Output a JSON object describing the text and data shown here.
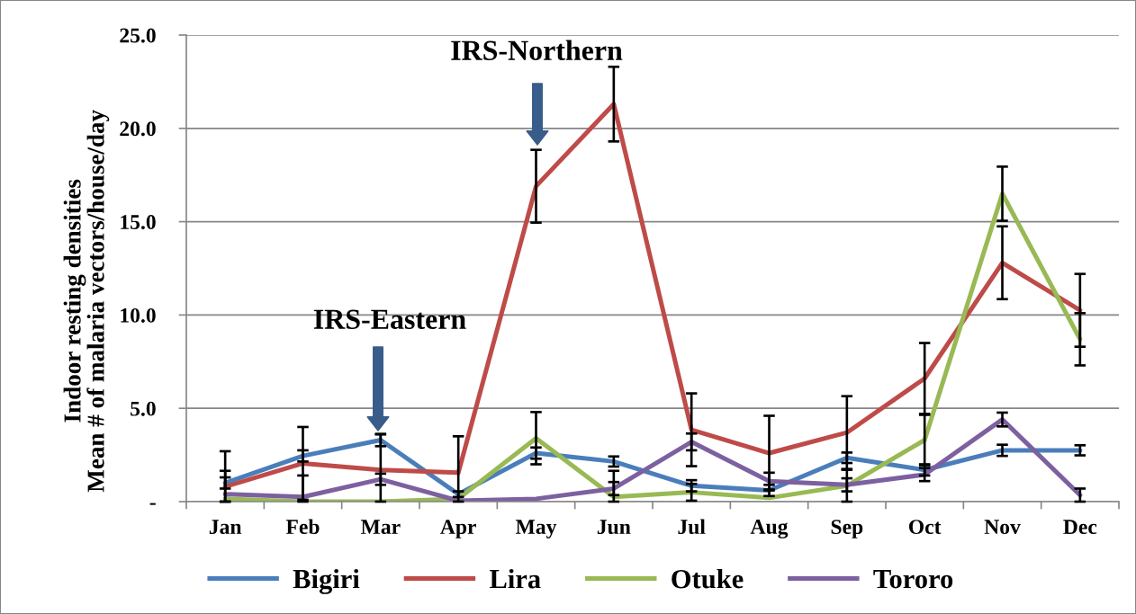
{
  "chart_data": {
    "type": "line",
    "ylabel": "Indoor resting densities\nMean # of malaria vectors/house/day",
    "categories": [
      "Jan",
      "Feb",
      "Mar",
      "Apr",
      "May",
      "Jun",
      "Jul",
      "Aug",
      "Sep",
      "Oct",
      "Nov",
      "Dec"
    ],
    "series": [
      {
        "name": "Bigiri",
        "color": "#4a7ebb",
        "values": [
          1.0,
          2.45,
          3.3,
          0.4,
          2.6,
          2.15,
          0.85,
          0.6,
          2.35,
          1.7,
          2.75,
          2.75
        ],
        "errors": [
          0.3,
          0.3,
          0.33,
          0.15,
          0.3,
          0.27,
          0.3,
          0.3,
          0.28,
          0.3,
          0.3,
          0.27
        ]
      },
      {
        "name": "Lira",
        "color": "#be4b48",
        "values": [
          0.8,
          2.05,
          1.7,
          1.55,
          16.9,
          21.3,
          3.85,
          2.6,
          3.7,
          6.6,
          12.8,
          10.25
        ],
        "errors": [
          [
            0,
            2.7
          ],
          1.95,
          [
            0,
            3.6
          ],
          [
            0,
            3.5
          ],
          1.95,
          2.0,
          1.95,
          2.0,
          1.95,
          1.9,
          1.95,
          1.95
        ]
      },
      {
        "name": "Otuke",
        "color": "#98b954",
        "values": [
          0.15,
          0,
          0,
          0.15,
          3.4,
          0.25,
          0.5,
          0.2,
          0.85,
          3.3,
          16.5,
          8.7
        ],
        "errors": [
          null,
          null,
          null,
          null,
          1.4,
          [
            0,
            1.65
          ],
          0.45,
          null,
          0.85,
          1.35,
          1.45,
          1.4
        ]
      },
      {
        "name": "Tororo",
        "color": "#7d60a0",
        "values": [
          0.4,
          0.25,
          1.2,
          0.05,
          0.15,
          0.7,
          3.2,
          1.1,
          0.9,
          1.45,
          4.4,
          0.35
        ],
        "errors": [
          [
            0,
            1.65
          ],
          [
            0,
            1.4
          ],
          0.3,
          null,
          null,
          0.35,
          0.45,
          0.45,
          0.35,
          0.35,
          0.37,
          0.35
        ]
      }
    ],
    "ylim": [
      0,
      25
    ],
    "yticks": [
      {
        "value": 0,
        "label": "-"
      },
      {
        "value": 5,
        "label": "5.0"
      },
      {
        "value": 10,
        "label": "10.0"
      },
      {
        "value": 15,
        "label": "15.0"
      },
      {
        "value": 20,
        "label": "20.0"
      },
      {
        "value": 25,
        "label": "25.0"
      }
    ],
    "grid": "y",
    "legend": "bottom",
    "annotations": [
      "IRS-Northern",
      "IRS-Eastern"
    ]
  }
}
